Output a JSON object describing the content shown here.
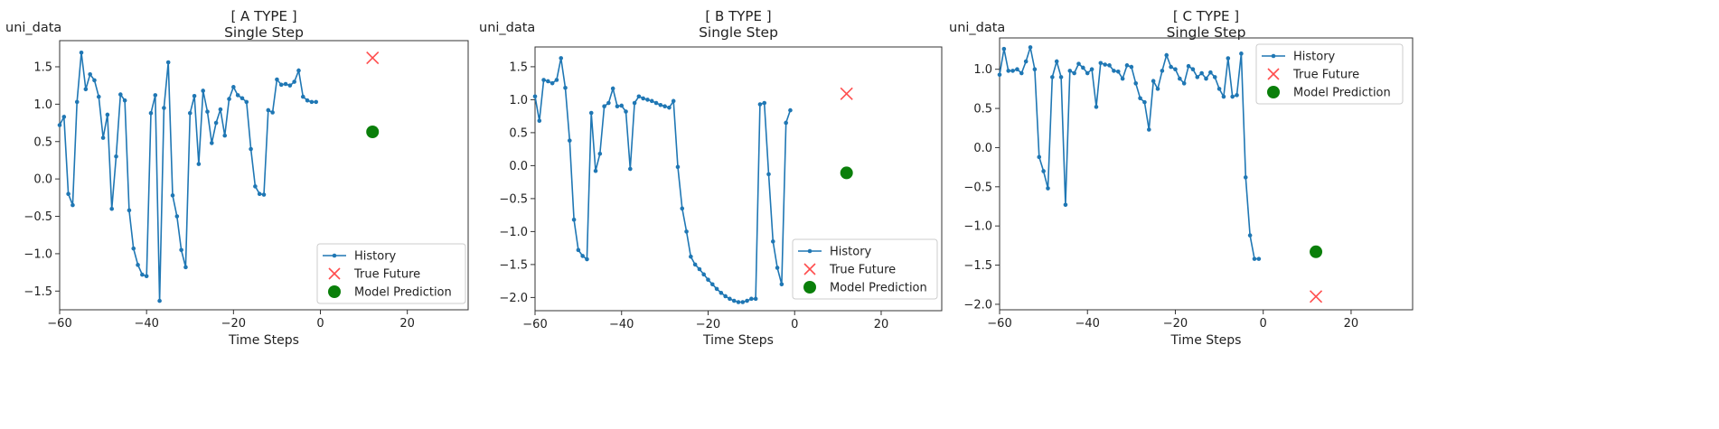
{
  "chart_data": [
    {
      "type": "line",
      "title": "[ A TYPE ]",
      "subtitle": "Single Step",
      "ylabel": "uni_data",
      "xlabel": "Time Steps",
      "xlim": [
        -60,
        34
      ],
      "ylim": [
        -1.75,
        1.85
      ],
      "xticks": [
        -60,
        -40,
        -20,
        0,
        20
      ],
      "xtick_labels": [
        "−60",
        "−40",
        "−20",
        "0",
        "20"
      ],
      "yticks": [
        -1.5,
        -1.0,
        -0.5,
        0.0,
        0.5,
        1.0,
        1.5
      ],
      "ytick_labels": [
        "−1.5",
        "−1.0",
        "−0.5",
        "0.0",
        "0.5",
        "1.0",
        "1.5"
      ],
      "legend_position": "bottom-right",
      "legend": [
        "History",
        "True Future",
        "Model Prediction"
      ],
      "history": {
        "name": "History",
        "x": [
          -60,
          -59,
          -58,
          -57,
          -56,
          -55,
          -54,
          -53,
          -52,
          -51,
          -50,
          -49,
          -48,
          -47,
          -46,
          -45,
          -44,
          -43,
          -42,
          -41,
          -40,
          -39,
          -38,
          -37,
          -36,
          -35,
          -34,
          -33,
          -32,
          -31,
          -30,
          -29,
          -28,
          -27,
          -26,
          -25,
          -24,
          -23,
          -22,
          -21,
          -20,
          -19,
          -18,
          -17,
          -16,
          -15,
          -14,
          -13,
          -12,
          -11,
          -10,
          -9,
          -8,
          -7,
          -6,
          -5,
          -4,
          -3,
          -2,
          -1
        ],
        "values": [
          0.72,
          0.83,
          -0.2,
          -0.35,
          1.03,
          1.69,
          1.2,
          1.4,
          1.32,
          1.1,
          0.55,
          0.86,
          -0.4,
          0.3,
          1.13,
          1.05,
          -0.42,
          -0.93,
          -1.15,
          -1.28,
          -1.3,
          0.88,
          1.12,
          -1.63,
          0.95,
          1.56,
          -0.22,
          -0.5,
          -0.95,
          -1.18,
          0.88,
          1.11,
          0.2,
          1.18,
          0.9,
          0.48,
          0.75,
          0.93,
          0.58,
          1.07,
          1.23,
          1.12,
          1.08,
          1.03,
          0.4,
          -0.1,
          -0.2,
          -0.21,
          0.92,
          0.89,
          1.33,
          1.26,
          1.27,
          1.25,
          1.3,
          1.45,
          1.1,
          1.05,
          1.03,
          1.03
        ]
      },
      "true_future": {
        "name": "True Future",
        "x": 12,
        "y": 1.62
      },
      "model_prediction": {
        "name": "Model Prediction",
        "x": 12,
        "y": 0.63
      }
    },
    {
      "type": "line",
      "title": "[ B TYPE ]",
      "subtitle": "Single Step",
      "ylabel": "uni_data",
      "xlabel": "Time Steps",
      "xlim": [
        -60,
        34
      ],
      "ylim": [
        -2.2,
        1.8
      ],
      "xticks": [
        -60,
        -40,
        -20,
        0,
        20
      ],
      "xtick_labels": [
        "−60",
        "−40",
        "−20",
        "0",
        "20"
      ],
      "yticks": [
        -2.0,
        -1.5,
        -1.0,
        -0.5,
        0.0,
        0.5,
        1.0,
        1.5
      ],
      "ytick_labels": [
        "−2.0",
        "−1.5",
        "−1.0",
        "−0.5",
        "0.0",
        "0.5",
        "1.0",
        "1.5"
      ],
      "legend_position": "bottom-right",
      "legend": [
        "History",
        "True Future",
        "Model Prediction"
      ],
      "history": {
        "name": "History",
        "x": [
          -60,
          -59,
          -58,
          -57,
          -56,
          -55,
          -54,
          -53,
          -52,
          -51,
          -50,
          -49,
          -48,
          -47,
          -46,
          -45,
          -44,
          -43,
          -42,
          -41,
          -40,
          -39,
          -38,
          -37,
          -36,
          -35,
          -34,
          -33,
          -32,
          -31,
          -30,
          -29,
          -28,
          -27,
          -26,
          -25,
          -24,
          -23,
          -22,
          -21,
          -20,
          -19,
          -18,
          -17,
          -16,
          -15,
          -14,
          -13,
          -12,
          -11,
          -10,
          -9,
          -8,
          -7,
          -6,
          -5,
          -4,
          -3,
          -2,
          -1
        ],
        "values": [
          1.05,
          0.68,
          1.3,
          1.28,
          1.25,
          1.3,
          1.63,
          1.18,
          0.38,
          -0.82,
          -1.28,
          -1.37,
          -1.42,
          0.8,
          -0.08,
          0.18,
          0.9,
          0.95,
          1.17,
          0.9,
          0.91,
          0.82,
          -0.05,
          0.95,
          1.05,
          1.02,
          1.0,
          0.98,
          0.95,
          0.92,
          0.9,
          0.88,
          0.98,
          -0.02,
          -0.65,
          -1.0,
          -1.38,
          -1.5,
          -1.57,
          -1.65,
          -1.73,
          -1.8,
          -1.87,
          -1.93,
          -1.98,
          -2.02,
          -2.05,
          -2.07,
          -2.07,
          -2.05,
          -2.02,
          -2.02,
          0.93,
          0.95,
          -0.13,
          -1.15,
          -1.55,
          -1.8,
          0.65,
          0.84
        ]
      },
      "true_future": {
        "name": "True Future",
        "x": 12,
        "y": 1.09
      },
      "model_prediction": {
        "name": "Model Prediction",
        "x": 12,
        "y": -0.11
      }
    },
    {
      "type": "line",
      "title": "[ C TYPE ]",
      "subtitle": "Single Step",
      "ylabel": "uni_data",
      "xlabel": "Time Steps",
      "xlim": [
        -60,
        34
      ],
      "ylim": [
        -2.07,
        1.4
      ],
      "xticks": [
        -60,
        -40,
        -20,
        0,
        20
      ],
      "xtick_labels": [
        "−60",
        "−40",
        "−20",
        "0",
        "20"
      ],
      "yticks": [
        -2.0,
        -1.5,
        -1.0,
        -0.5,
        0.0,
        0.5,
        1.0
      ],
      "ytick_labels": [
        "−2.0",
        "−1.5",
        "−1.0",
        "−0.5",
        "0.0",
        "0.5",
        "1.0"
      ],
      "legend_position": "top-right",
      "legend": [
        "History",
        "True Future",
        "Model Prediction"
      ],
      "history": {
        "name": "History",
        "x": [
          -60,
          -59,
          -58,
          -57,
          -56,
          -55,
          -54,
          -53,
          -52,
          -51,
          -50,
          -49,
          -48,
          -47,
          -46,
          -45,
          -44,
          -43,
          -42,
          -41,
          -40,
          -39,
          -38,
          -37,
          -36,
          -35,
          -34,
          -33,
          -32,
          -31,
          -30,
          -29,
          -28,
          -27,
          -26,
          -25,
          -24,
          -23,
          -22,
          -21,
          -20,
          -19,
          -18,
          -17,
          -16,
          -15,
          -14,
          -13,
          -12,
          -11,
          -10,
          -9,
          -8,
          -7,
          -6,
          -5,
          -4,
          -3,
          -2,
          -1
        ],
        "values": [
          0.93,
          1.26,
          0.98,
          0.98,
          1.0,
          0.95,
          1.1,
          1.28,
          1.0,
          -0.12,
          -0.3,
          -0.52,
          0.9,
          1.1,
          0.9,
          -0.73,
          0.98,
          0.95,
          1.07,
          1.02,
          0.95,
          1.0,
          0.52,
          1.08,
          1.06,
          1.05,
          0.98,
          0.97,
          0.88,
          1.05,
          1.03,
          0.82,
          0.63,
          0.58,
          0.23,
          0.85,
          0.75,
          0.98,
          1.18,
          1.03,
          1.0,
          0.88,
          0.82,
          1.04,
          1.0,
          0.9,
          0.95,
          0.88,
          0.96,
          0.9,
          0.75,
          0.65,
          1.14,
          0.65,
          0.67,
          1.2,
          -0.38,
          -1.12,
          -1.42,
          -1.42
        ]
      },
      "true_future": {
        "name": "True Future",
        "x": 12,
        "y": -1.9
      },
      "model_prediction": {
        "name": "Model Prediction",
        "x": 12,
        "y": -1.33
      }
    }
  ],
  "colors": {
    "history": "#1f77b4",
    "true_future": "#ff4d4d",
    "model_prediction": "#0a7f0a",
    "axes": "#333333"
  }
}
